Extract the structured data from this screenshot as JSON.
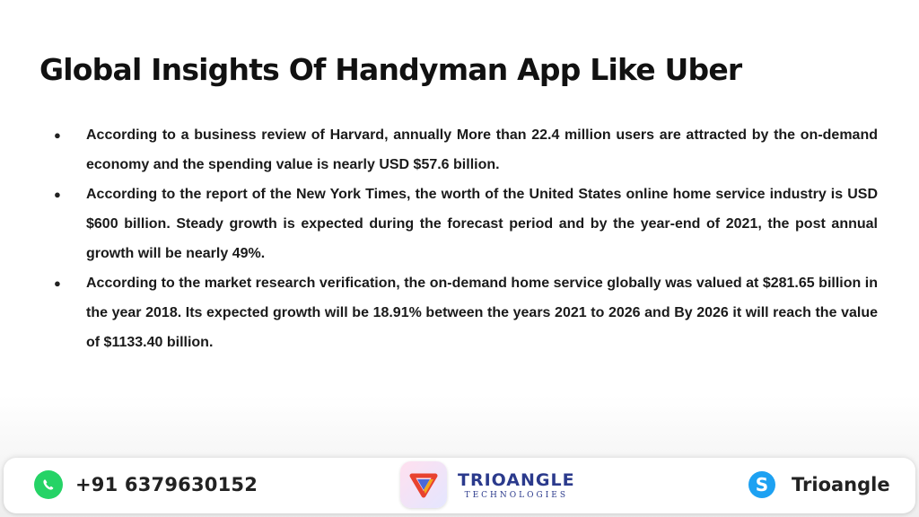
{
  "slide": {
    "title": "Global Insights Of Handyman App Like Uber",
    "bullet_symbol": "●",
    "bullets": [
      "According to a business review of Harvard, annually More than 22.4 million users are attracted by the on-demand economy and the spending value is nearly USD $57.6 billion.",
      "According to the report of the New York Times, the worth of the United States online home service industry is USD $600 billion. Steady growth is expected during the forecast period and by the year-end of 2021, the post annual growth will be nearly 49%.",
      "According to the market research verification, the on-demand home service globally was valued at $281.65 billion in the year 2018. Its expected growth will be 18.91% between the years 2021 to 2026 and By 2026 it will reach the value of $1133.40 billion."
    ]
  },
  "footer": {
    "phone": {
      "icon": "whatsapp-icon",
      "text": "+91 6379630152"
    },
    "logo": {
      "icon": "trioangle-logo-icon",
      "name": "TRIOANGLE",
      "tagline": "TECHNOLOGIES"
    },
    "skype": {
      "icon": "skype-icon",
      "text": "Trioangle"
    }
  },
  "colors": {
    "whatsapp": "#25d366",
    "skype": "#1da1f2",
    "brand_blue": "#2b3a8c"
  }
}
